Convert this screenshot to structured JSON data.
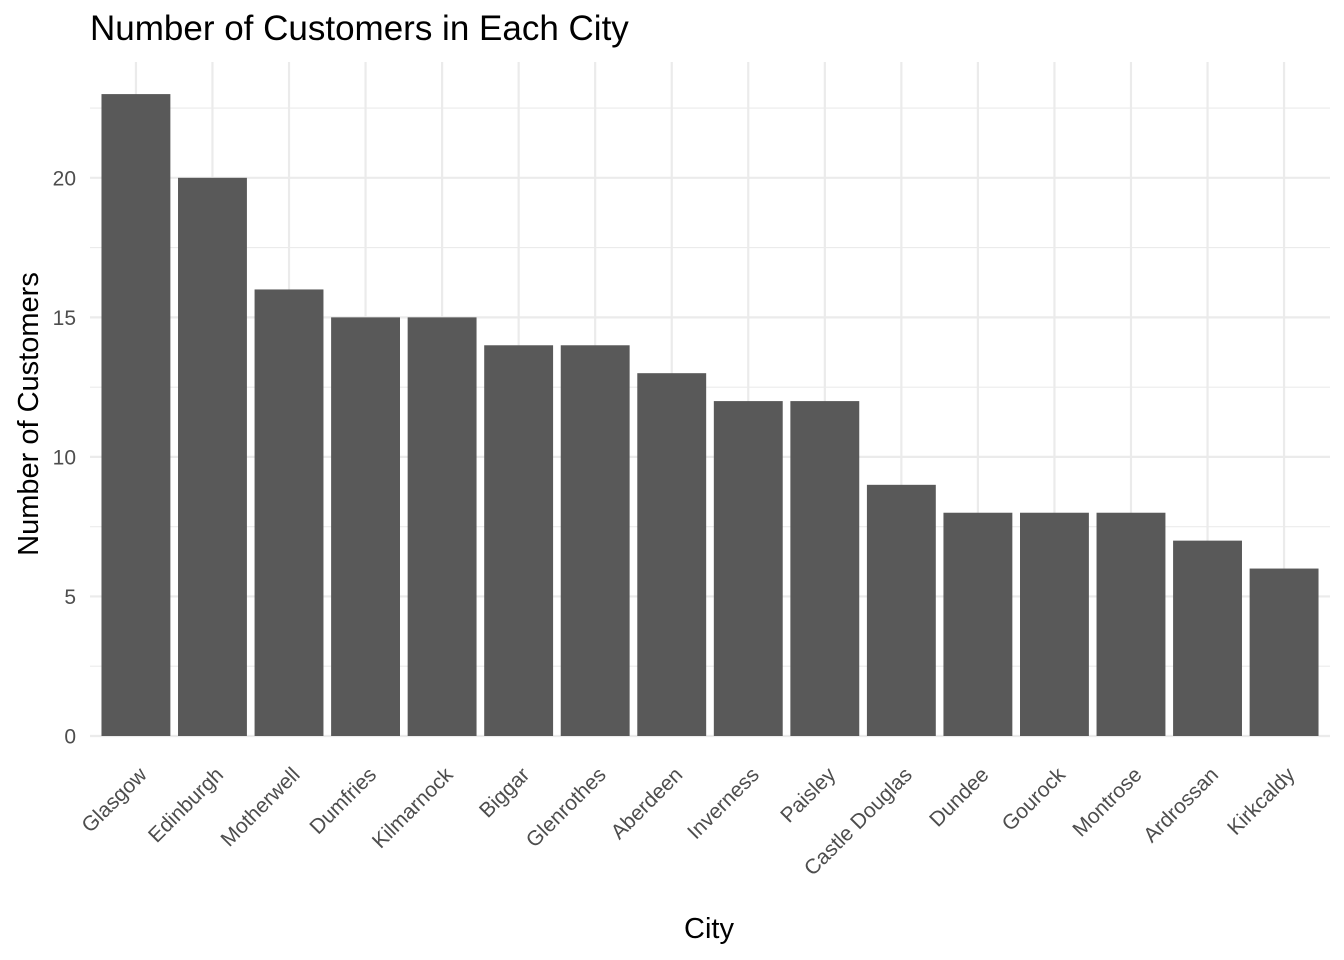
{
  "chart_data": {
    "type": "bar",
    "title": "Number of Customers in Each City",
    "xlabel": "City",
    "ylabel": "Number of Customers",
    "categories": [
      "Glasgow",
      "Edinburgh",
      "Motherwell",
      "Dumfries",
      "Kilmarnock",
      "Biggar",
      "Glenrothes",
      "Aberdeen",
      "Inverness",
      "Paisley",
      "Castle Douglas",
      "Dundee",
      "Gourock",
      "Montrose",
      "Ardrossan",
      "Kirkcaldy"
    ],
    "values": [
      23,
      20,
      16,
      15,
      15,
      14,
      14,
      13,
      12,
      12,
      9,
      8,
      8,
      8,
      7,
      6
    ],
    "yticks": [
      0,
      5,
      10,
      15,
      20
    ],
    "ylim": [
      0,
      24.15
    ],
    "grid": true,
    "legend": "none",
    "bar_color": "#595959",
    "grid_color": "#ebebeb",
    "tick_label_color": "#4d4d4d"
  }
}
